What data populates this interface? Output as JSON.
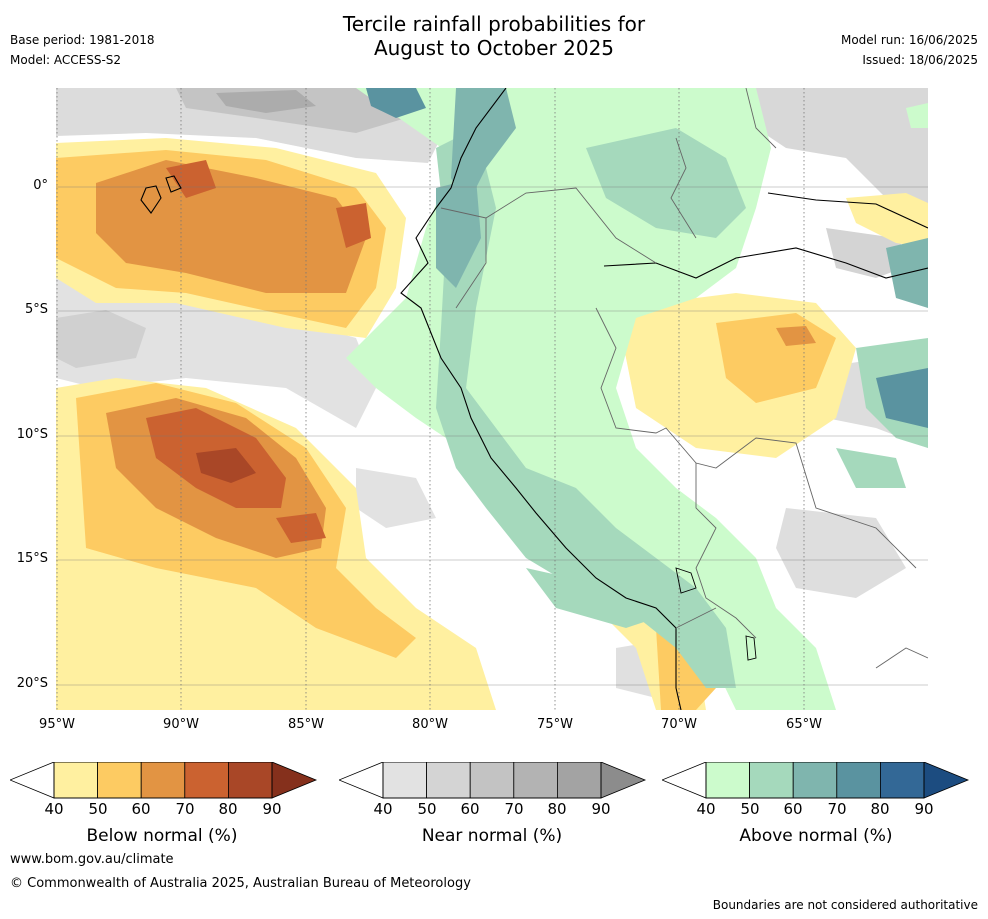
{
  "title_line1": "Tercile rainfall probabilities for",
  "title_line2": "August to October 2025",
  "base_period": "Base period: 1981-2018",
  "model": "Model: ACCESS-S2",
  "model_run": "Model run: 16/06/2025",
  "issued": "Issued: 18/06/2025",
  "latitudes": [
    "0°",
    "5°S",
    "10°S",
    "15°S",
    "20°S"
  ],
  "longitudes": [
    "95°W",
    "90°W",
    "85°W",
    "80°W",
    "75°W",
    "70°W",
    "65°W"
  ],
  "colorbars": [
    {
      "label": "Below normal (%)",
      "ticks": [
        "40",
        "50",
        "60",
        "70",
        "80",
        "90"
      ],
      "colors": [
        "#fff0a0",
        "#fdcb62",
        "#e29443",
        "#cb6230",
        "#a94727",
        "#85301c"
      ]
    },
    {
      "label": "Near normal (%)",
      "ticks": [
        "40",
        "50",
        "60",
        "70",
        "80",
        "90"
      ],
      "colors": [
        "#e2e2e2",
        "#d4d4d4",
        "#c3c3c3",
        "#b3b3b3",
        "#a3a3a3",
        "#8c8c8c"
      ]
    },
    {
      "label": "Above normal (%)",
      "ticks": [
        "40",
        "50",
        "60",
        "70",
        "80",
        "90"
      ],
      "colors": [
        "#ccfbcc",
        "#a5d9bc",
        "#7fb5ae",
        "#5a93a0",
        "#336896",
        "#1c4c80"
      ]
    }
  ],
  "website": "www.bom.gov.au/climate",
  "copyright": "© Commonwealth of Australia 2025, Australian Bureau of Meteorology",
  "boundaries_note": "Boundaries are not considered authoritative"
}
